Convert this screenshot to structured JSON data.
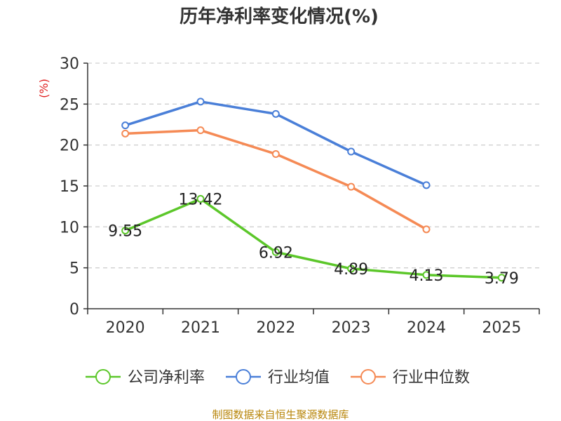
{
  "chart_data": {
    "type": "line",
    "title": "历年净利率变化情况(%)",
    "ylabel": "(%)",
    "xlabel": "",
    "categories": [
      "2020",
      "2021",
      "2022",
      "2023",
      "2024",
      "2025"
    ],
    "ylim": [
      0,
      30
    ],
    "yticks": [
      0,
      5,
      10,
      15,
      20,
      25,
      30
    ],
    "grid": true,
    "legend_position": "bottom",
    "series": [
      {
        "name": "公司净利率",
        "color": "#5cc72a",
        "values": [
          9.55,
          13.42,
          6.92,
          4.89,
          4.13,
          3.79
        ],
        "labels": [
          "9.55",
          "13.42",
          "6.92",
          "4.89",
          "4.13",
          "3.79"
        ]
      },
      {
        "name": "行业均值",
        "color": "#4a7fd8",
        "values": [
          22.4,
          25.3,
          23.8,
          19.2,
          15.1,
          null
        ]
      },
      {
        "name": "行业中位数",
        "color": "#f58a55",
        "values": [
          21.4,
          21.8,
          18.9,
          14.9,
          9.7,
          null
        ]
      }
    ],
    "source": "制图数据来自恒生聚源数据库"
  }
}
